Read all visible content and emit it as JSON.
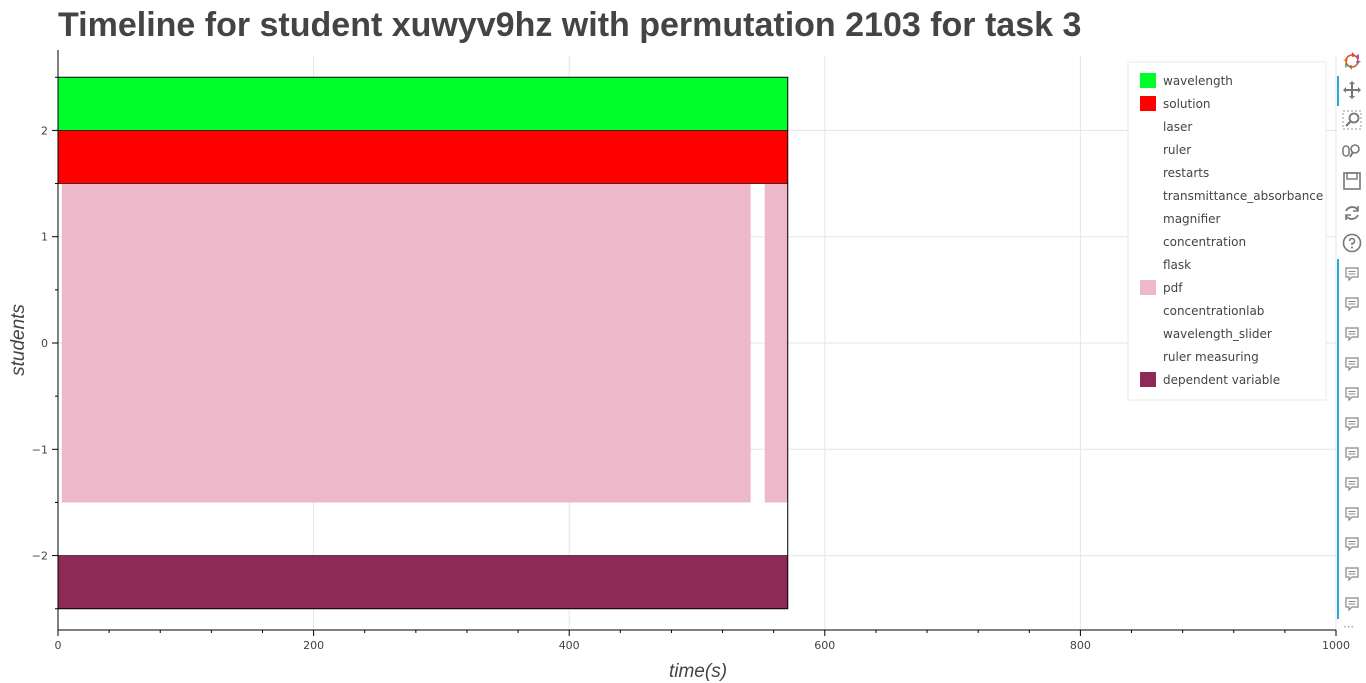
{
  "chart_data": {
    "type": "bar",
    "orientation": "horizontal",
    "title": "Timeline for student xuwyv9hz with permutation 2103 for task 3",
    "xlabel": "time(s)",
    "ylabel": "students",
    "xlim": [
      0,
      1000
    ],
    "ylim": [
      -2.7,
      2.7
    ],
    "x_ticks": [
      0,
      200,
      400,
      600,
      800,
      1000
    ],
    "x_tick_labels": [
      "0",
      "200",
      "400",
      "600",
      "800",
      "1000"
    ],
    "y_ticks": [
      -2,
      -1,
      0,
      1,
      2
    ],
    "y_tick_labels": [
      "−2",
      "−1",
      "0",
      "1",
      "2"
    ],
    "grid": true,
    "legend_position": "top-right",
    "series": [
      {
        "name": "wavelength",
        "color": "#00ff2a",
        "segments": [
          {
            "x0": 0,
            "x1": 571,
            "y0": 2.0,
            "y1": 2.5
          }
        ]
      },
      {
        "name": "solution",
        "color": "#ff0000",
        "segments": [
          {
            "x0": 0,
            "x1": 571,
            "y0": 1.5,
            "y1": 2.0
          }
        ]
      },
      {
        "name": "laser",
        "color": "#ffffff",
        "segments": []
      },
      {
        "name": "ruler",
        "color": "#ffffff",
        "segments": []
      },
      {
        "name": "restarts",
        "color": "#ffffff",
        "segments": []
      },
      {
        "name": "transmittance_absorbance",
        "color": "#ffffff",
        "segments": []
      },
      {
        "name": "magnifier",
        "color": "#ffffff",
        "segments": []
      },
      {
        "name": "concentration",
        "color": "#ffffff",
        "segments": []
      },
      {
        "name": "flask",
        "color": "#ffffff",
        "segments": []
      },
      {
        "name": "pdf",
        "color": "#eeb8cb",
        "segments": [
          {
            "x0": 3,
            "x1": 542,
            "y0": -1.5,
            "y1": 1.5
          },
          {
            "x0": 553,
            "x1": 571,
            "y0": -1.5,
            "y1": 1.5
          }
        ]
      },
      {
        "name": "concentrationlab",
        "color": "#ffffff",
        "segments": []
      },
      {
        "name": "wavelength_slider",
        "color": "#ffffff",
        "segments": []
      },
      {
        "name": "ruler measuring",
        "color": "#ffffff",
        "segments": []
      },
      {
        "name": "dependent variable",
        "color": "#8e2a57",
        "segments": [
          {
            "x0": 0,
            "x1": 571,
            "y0": -2.5,
            "y1": -2.0
          }
        ]
      }
    ],
    "outline": {
      "x0": 0,
      "x1": 571,
      "y0": -2.5,
      "y1": 2.5
    }
  },
  "toolbar": {
    "tools": [
      "bokeh-logo-icon",
      "pan-icon",
      "box-zoom-icon",
      "wheel-zoom-icon",
      "save-icon",
      "reset-icon",
      "help-icon"
    ],
    "hover_count": 12,
    "more": "⋯"
  }
}
